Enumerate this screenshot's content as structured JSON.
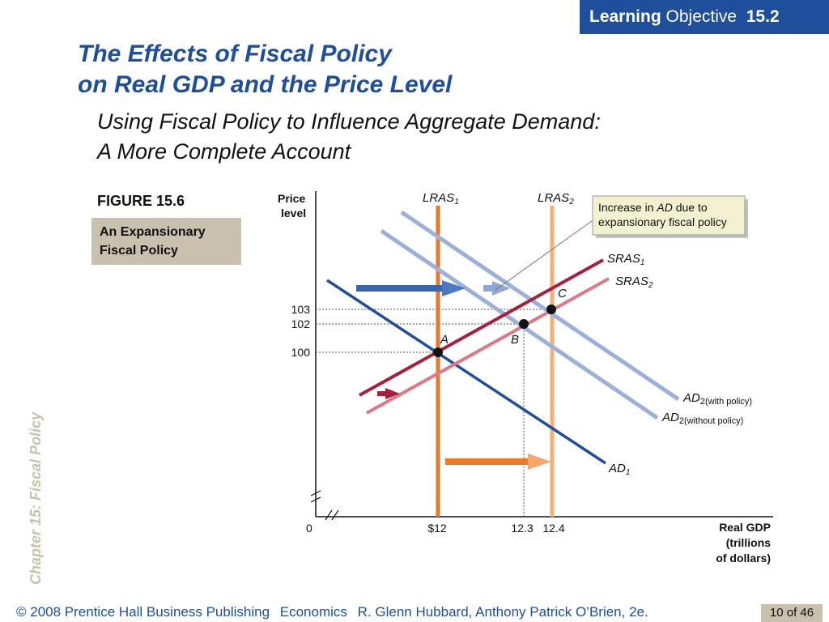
{
  "badge": {
    "bold": "Learning",
    "rest": "Objective",
    "number": "15.2"
  },
  "title": {
    "line1": "The Effects of Fiscal Policy",
    "line2": "on Real GDP and the Price Level"
  },
  "subtitle": {
    "line1": "Using Fiscal Policy to Influence Aggregate Demand:",
    "line2": "A More Complete Account"
  },
  "figure": {
    "label": "FIGURE 15.6",
    "caption_line1": "An Expansionary",
    "caption_line2": "Fiscal Policy"
  },
  "side_text": "Chapter 15:  Fiscal Policy",
  "footer": {
    "copyright": "© 2008 Prentice Hall Business Publishing",
    "book": "Economics",
    "authors": "R. Glenn Hubbard, Anthony Patrick O’Brien, 2e.",
    "page": "10 of 46"
  },
  "chart_data": {
    "type": "line",
    "ylabel_line1": "Price",
    "ylabel_line2": "level",
    "xlabel_line1": "Real GDP",
    "xlabel_line2": "(trillions",
    "xlabel_line3": "of dollars)",
    "origin_label": "0",
    "x_ticks": [
      "$12",
      "12.3",
      "12.4"
    ],
    "y_ticks": [
      "103",
      "102",
      "100"
    ],
    "curve_labels": {
      "lras1": "LRAS",
      "lras1_sub": "1",
      "lras2": "LRAS",
      "lras2_sub": "2",
      "sras1": "SRAS",
      "sras1_sub": "1",
      "sras2": "SRAS",
      "sras2_sub": "2",
      "ad1": "AD",
      "ad1_sub": "1",
      "ad2_with": "AD",
      "ad2_with_sub": "2(with policy)",
      "ad2_without": "AD",
      "ad2_without_sub": "2(without policy)"
    },
    "points": [
      {
        "label": "A",
        "x": 12.0,
        "y": 100
      },
      {
        "label": "B",
        "x": 12.3,
        "y": 102
      },
      {
        "label": "C",
        "x": 12.4,
        "y": 103
      }
    ],
    "callout": {
      "pre": "Increase in ",
      "em": "AD",
      "post": " due to",
      "line2": "expansionary fiscal policy"
    },
    "colors": {
      "lras1": "#e8772a",
      "lras2": "#f2b078",
      "sras1": "#a3213d",
      "sras2": "#d97a86",
      "ad1": "#1f4e9a",
      "ad2": "#9bb1d9"
    }
  }
}
